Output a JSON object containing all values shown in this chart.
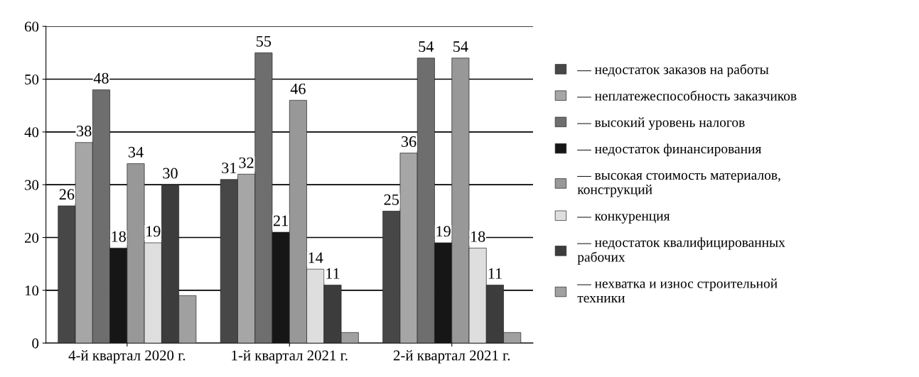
{
  "chart_data": {
    "type": "bar",
    "categories": [
      "4-й квартал 2020 г.",
      "1-й квартал 2021 г.",
      "2-й квартал 2021 г."
    ],
    "series": [
      {
        "name": "— недостаток заказов на работы",
        "color": "#474747",
        "values": [
          26,
          31,
          25
        ],
        "value_labels": [
          "26",
          "31",
          "25"
        ]
      },
      {
        "name": "— неплатежеспособность заказчиков",
        "color": "#a6a6a6",
        "values": [
          38,
          32,
          36
        ],
        "value_labels": [
          "38",
          "32",
          "36"
        ]
      },
      {
        "name": "— высокий уровень налогов",
        "color": "#6e6e6e",
        "values": [
          48,
          55,
          54
        ],
        "value_labels": [
          "48",
          "55",
          "54"
        ]
      },
      {
        "name": "— недостаток финансирования",
        "color": "#161616",
        "values": [
          18,
          21,
          19
        ],
        "value_labels": [
          "18",
          "21",
          "19"
        ]
      },
      {
        "name": "— высокая стоимость материалов,\nконструкций",
        "color": "#989898",
        "values": [
          34,
          46,
          54
        ],
        "value_labels": [
          "34",
          "46",
          "54"
        ]
      },
      {
        "name": "— конкуренция",
        "color": "#dedede",
        "values": [
          19,
          14,
          18
        ],
        "value_labels": [
          "19",
          "14",
          "18"
        ]
      },
      {
        "name": "— недостаток квалифицированных\nрабочих",
        "color": "#3c3c3c",
        "values": [
          30,
          11,
          11
        ],
        "value_labels": [
          "30",
          "11",
          "11"
        ]
      },
      {
        "name": "— нехватка и износ строительной\nтехники",
        "color": "#a0a0a0",
        "values": [
          9,
          2,
          2
        ],
        "value_labels": [
          null,
          null,
          null
        ]
      }
    ],
    "ylim": [
      0,
      60
    ],
    "yticks": [
      0,
      10,
      20,
      30,
      40,
      50,
      60
    ],
    "grid": "y",
    "legend": "right"
  }
}
